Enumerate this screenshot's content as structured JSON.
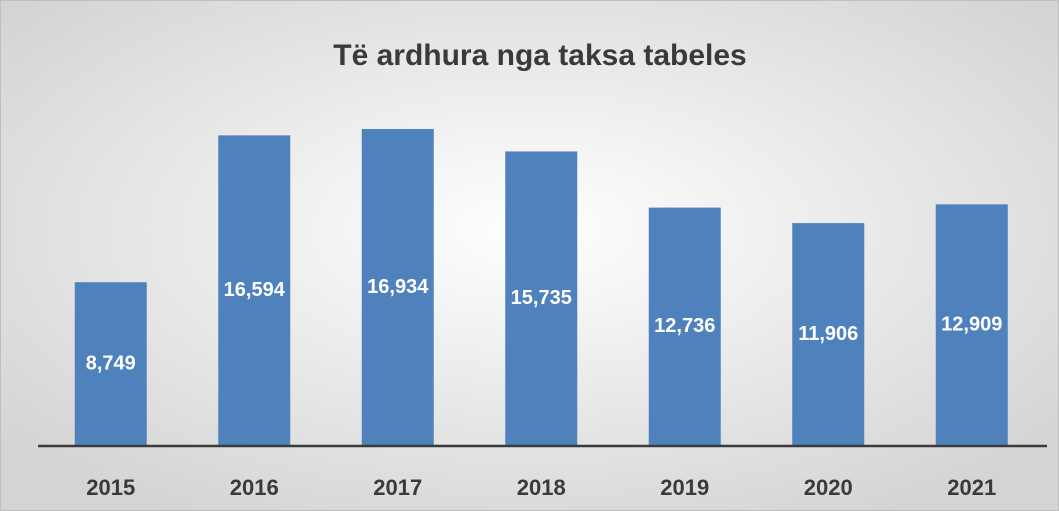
{
  "chart_data": {
    "type": "bar",
    "title": "Të ardhura nga taksa tabeles",
    "categories": [
      "2015",
      "2016",
      "2017",
      "2018",
      "2019",
      "2020",
      "2021"
    ],
    "values": [
      8749,
      16594,
      16934,
      15735,
      12736,
      11906,
      12909
    ],
    "value_labels": [
      "8,749",
      "16,594",
      "16,934",
      "15,735",
      "12,736",
      "11,906",
      "12,909"
    ],
    "color": "#4f81bd"
  }
}
